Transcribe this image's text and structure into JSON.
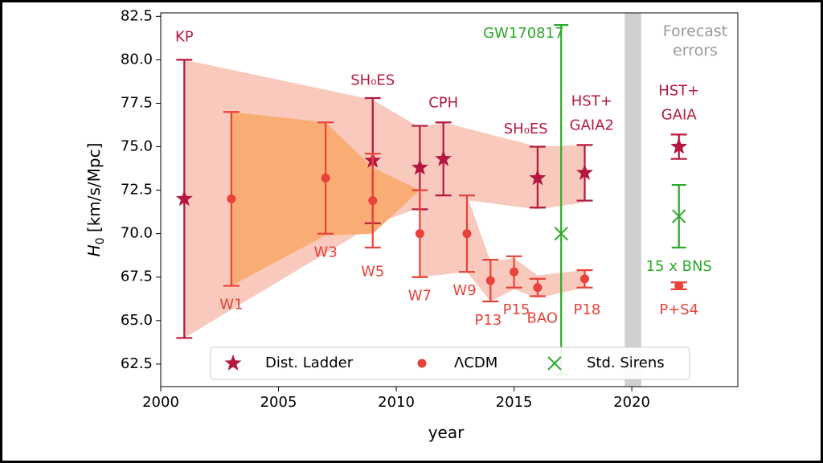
{
  "chart_data": {
    "type": "scatter",
    "xlabel": "year",
    "ylabel_base": "H",
    "ylabel_sub": "0",
    "ylabel_rest": " [km/s/Mpc]",
    "xlim": [
      2000,
      2024.5
    ],
    "ylim": [
      61.2,
      82.7
    ],
    "xticks": [
      2000,
      2005,
      2010,
      2015,
      2020
    ],
    "yticks": [
      "62.5",
      "65.0",
      "67.5",
      "70.0",
      "72.5",
      "75.0",
      "77.5",
      "80.0",
      "82.5"
    ],
    "forecast_band": [
      2019.7,
      2020.4
    ],
    "forecast_label": [
      "Forecast",
      "errors"
    ],
    "colors": {
      "ladder": "#b5183f",
      "lcdm": "#e8423a",
      "sirens": "#2ea82a",
      "ladder_band": "#f8c9bc",
      "lcdm_band": "#f9ad74",
      "forecast": "#d0d0d0",
      "forecast_text": "#9a9a9a"
    },
    "ladder_band": [
      [
        2001,
        80.0
      ],
      [
        2009,
        77.7
      ],
      [
        2011,
        76.1
      ],
      [
        2012,
        76.4
      ],
      [
        2016,
        75.0
      ],
      [
        2018,
        75.1
      ],
      [
        2018,
        71.8
      ],
      [
        2016,
        71.4
      ],
      [
        2012,
        72.1
      ],
      [
        2011,
        71.5
      ],
      [
        2009,
        70.5
      ],
      [
        2001,
        64.0
      ]
    ],
    "lcdm_band": [
      [
        2003,
        77.0
      ],
      [
        2007,
        76.4
      ],
      [
        2009,
        73.8
      ],
      [
        2011,
        72.5
      ],
      [
        2009,
        70.0
      ],
      [
        2007,
        69.9
      ],
      [
        2003,
        67.0
      ]
    ],
    "lcdm_band2": [
      [
        2011,
        72.5
      ],
      [
        2013,
        72.2
      ],
      [
        2014,
        68.4
      ],
      [
        2015,
        68.6
      ],
      [
        2016,
        67.6
      ],
      [
        2018,
        67.9
      ],
      [
        2018,
        66.9
      ],
      [
        2016,
        66.3
      ],
      [
        2015,
        66.8
      ],
      [
        2014,
        66.1
      ],
      [
        2013,
        67.8
      ],
      [
        2011,
        67.5
      ]
    ],
    "series": [
      {
        "name": "Dist. Ladder",
        "marker": "star",
        "points": [
          {
            "x": 2001,
            "y": 72.0,
            "lo": 64.0,
            "hi": 80.0
          },
          {
            "x": 2009,
            "y": 74.2,
            "lo": 70.6,
            "hi": 77.8
          },
          {
            "x": 2011,
            "y": 73.8,
            "lo": 71.4,
            "hi": 76.2
          },
          {
            "x": 2012,
            "y": 74.3,
            "lo": 72.2,
            "hi": 76.4
          },
          {
            "x": 2016,
            "y": 73.2,
            "lo": 71.5,
            "hi": 75.0
          },
          {
            "x": 2018,
            "y": 73.5,
            "lo": 71.9,
            "hi": 75.1
          },
          {
            "x": 2022,
            "y": 75.0,
            "lo": 74.3,
            "hi": 75.7
          }
        ]
      },
      {
        "name": "ΛCDM",
        "marker": "circle",
        "points": [
          {
            "x": 2003,
            "y": 72.0,
            "lo": 67.0,
            "hi": 77.0
          },
          {
            "x": 2007,
            "y": 73.2,
            "lo": 70.0,
            "hi": 76.4
          },
          {
            "x": 2009,
            "y": 71.9,
            "lo": 69.2,
            "hi": 74.6
          },
          {
            "x": 2011,
            "y": 70.0,
            "lo": 67.5,
            "hi": 72.5
          },
          {
            "x": 2013,
            "y": 70.0,
            "lo": 67.8,
            "hi": 72.2
          },
          {
            "x": 2014,
            "y": 67.3,
            "lo": 66.1,
            "hi": 68.5
          },
          {
            "x": 2015,
            "y": 67.8,
            "lo": 66.9,
            "hi": 68.7
          },
          {
            "x": 2016,
            "y": 66.9,
            "lo": 66.4,
            "hi": 67.4
          },
          {
            "x": 2018,
            "y": 67.4,
            "lo": 66.9,
            "hi": 67.9
          },
          {
            "x": 2022,
            "y": 67.0,
            "lo": 66.8,
            "hi": 67.2
          }
        ]
      },
      {
        "name": "Std. Sirens",
        "marker": "x",
        "points": [
          {
            "x": 2017,
            "y": 70.0,
            "lo": 61.9,
            "hi": 82.0
          },
          {
            "x": 2022,
            "y": 71.0,
            "lo": 69.2,
            "hi": 72.8
          }
        ]
      }
    ],
    "annotations": [
      {
        "text": "KP",
        "x": 2001,
        "y": 81.3,
        "color": "ladder"
      },
      {
        "text": "W1",
        "x": 2003,
        "y": 65.9,
        "color": "lcdm"
      },
      {
        "text": "W3",
        "x": 2007,
        "y": 68.9,
        "color": "lcdm"
      },
      {
        "text": "SH₀ES",
        "x": 2009,
        "y": 78.8,
        "color": "ladder"
      },
      {
        "text": "W5",
        "x": 2009,
        "y": 67.8,
        "color": "lcdm"
      },
      {
        "text": "W7",
        "x": 2011,
        "y": 66.4,
        "color": "lcdm"
      },
      {
        "text": "CPH",
        "x": 2012,
        "y": 77.5,
        "color": "ladder"
      },
      {
        "text": "W9",
        "x": 2012.9,
        "y": 66.7,
        "color": "lcdm"
      },
      {
        "text": "P13",
        "x": 2013.9,
        "y": 65.0,
        "color": "lcdm"
      },
      {
        "text": "P15",
        "x": 2015.1,
        "y": 65.6,
        "color": "lcdm"
      },
      {
        "text": "BAO",
        "x": 2016.2,
        "y": 65.1,
        "color": "lcdm"
      },
      {
        "text": "SH₀ES",
        "x": 2015.5,
        "y": 76.0,
        "color": "ladder"
      },
      {
        "text": "GW170817",
        "x": 2015.4,
        "y": 81.5,
        "color": "sirens"
      },
      {
        "text": "HST+",
        "x": 2018.3,
        "y": 77.6,
        "color": "ladder"
      },
      {
        "text": "GAIA2",
        "x": 2018.3,
        "y": 76.2,
        "color": "ladder"
      },
      {
        "text": "P18",
        "x": 2018.1,
        "y": 65.6,
        "color": "lcdm"
      },
      {
        "text": "HST+",
        "x": 2022,
        "y": 78.2,
        "color": "ladder"
      },
      {
        "text": "GAIA",
        "x": 2022,
        "y": 76.8,
        "color": "ladder"
      },
      {
        "text": "15 x BNS",
        "x": 2022,
        "y": 68.1,
        "color": "sirens"
      },
      {
        "text": "P+S4",
        "x": 2022,
        "y": 65.6,
        "color": "lcdm"
      }
    ],
    "legend": {
      "placement": "bottom",
      "entries": [
        {
          "label": "Dist. Ladder",
          "marker": "star",
          "color": "ladder"
        },
        {
          "label": "ΛCDM",
          "marker": "circle",
          "color": "lcdm"
        },
        {
          "label": "Std. Sirens",
          "marker": "x",
          "color": "sirens"
        }
      ]
    }
  }
}
